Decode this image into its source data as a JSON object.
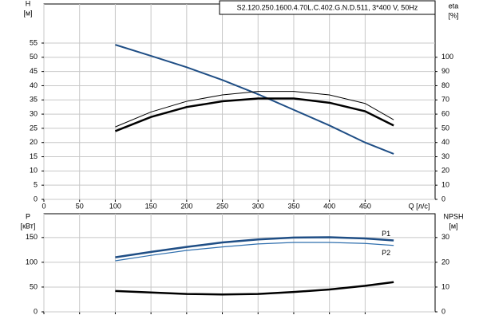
{
  "chart_data": [
    {
      "type": "line",
      "title": "S2.120.250.1600.4.70L.C.402.G.N.D.511, 3*400 V, 50Hz",
      "xlabel": "Q [л/с]",
      "ylabel": "H",
      "yunit": "[м]",
      "y2label": "eta",
      "y2unit": "[%]",
      "x": [
        100,
        150,
        200,
        250,
        300,
        350,
        400,
        450,
        490
      ],
      "series": [
        {
          "name": "H",
          "color": "#1f4e85",
          "linewidth": 2,
          "axis": "y",
          "values": [
            54.4,
            50.5,
            46.5,
            42,
            37,
            31.5,
            26,
            20,
            16
          ]
        },
        {
          "name": "eta",
          "color": "#000000",
          "linewidth": 2.5,
          "axis": "y2",
          "values": [
            48,
            58,
            65,
            69,
            71,
            71,
            68,
            62,
            52
          ]
        },
        {
          "name": "eta",
          "color": "#000000",
          "linewidth": 1,
          "axis": "y2",
          "values": [
            51,
            61.5,
            69,
            73.5,
            76,
            76,
            73.5,
            67.5,
            56
          ]
        }
      ],
      "xlim": [
        0,
        548
      ],
      "xticks": [
        0,
        50,
        100,
        150,
        200,
        250,
        300,
        350,
        400,
        450
      ],
      "ylim": [
        0,
        68.75
      ],
      "yticks": [
        0,
        5,
        10,
        15,
        20,
        25,
        30,
        35,
        40,
        45,
        50,
        55
      ],
      "y2lim": [
        0,
        137.5
      ],
      "y2ticks": [
        0,
        10,
        20,
        30,
        40,
        50,
        60,
        70,
        80,
        90,
        100
      ],
      "grid": true
    },
    {
      "type": "line",
      "ylabel": "P",
      "yunit": "[кВт]",
      "y2label": "NPSH",
      "y2unit": "[м]",
      "x": [
        100,
        150,
        200,
        250,
        300,
        350,
        400,
        450,
        490
      ],
      "series": [
        {
          "name": "P1",
          "color": "#1f4e85",
          "linewidth": 2.5,
          "axis": "y",
          "values": [
            110,
            121,
            131,
            140,
            146,
            150,
            150.5,
            148,
            144
          ]
        },
        {
          "name": "P2",
          "color": "#2f6fae",
          "linewidth": 1.2,
          "axis": "y",
          "values": [
            103,
            114,
            124,
            131,
            137,
            140,
            140,
            138,
            134
          ]
        },
        {
          "name": "NPSH",
          "color": "#000000",
          "linewidth": 2.5,
          "axis": "y2",
          "values": [
            8.4,
            7.8,
            7.2,
            7,
            7.2,
            8,
            9,
            10.5,
            12
          ]
        }
      ],
      "xlim": [
        0,
        548
      ],
      "xticks": [
        0,
        50,
        100,
        150,
        200,
        250,
        300,
        350,
        400,
        450
      ],
      "ylim": [
        0,
        198
      ],
      "yticks": [
        0,
        50,
        100,
        150
      ],
      "y2lim": [
        0,
        39.6
      ],
      "y2ticks": [
        0,
        10,
        20,
        30
      ],
      "grid": true
    }
  ]
}
